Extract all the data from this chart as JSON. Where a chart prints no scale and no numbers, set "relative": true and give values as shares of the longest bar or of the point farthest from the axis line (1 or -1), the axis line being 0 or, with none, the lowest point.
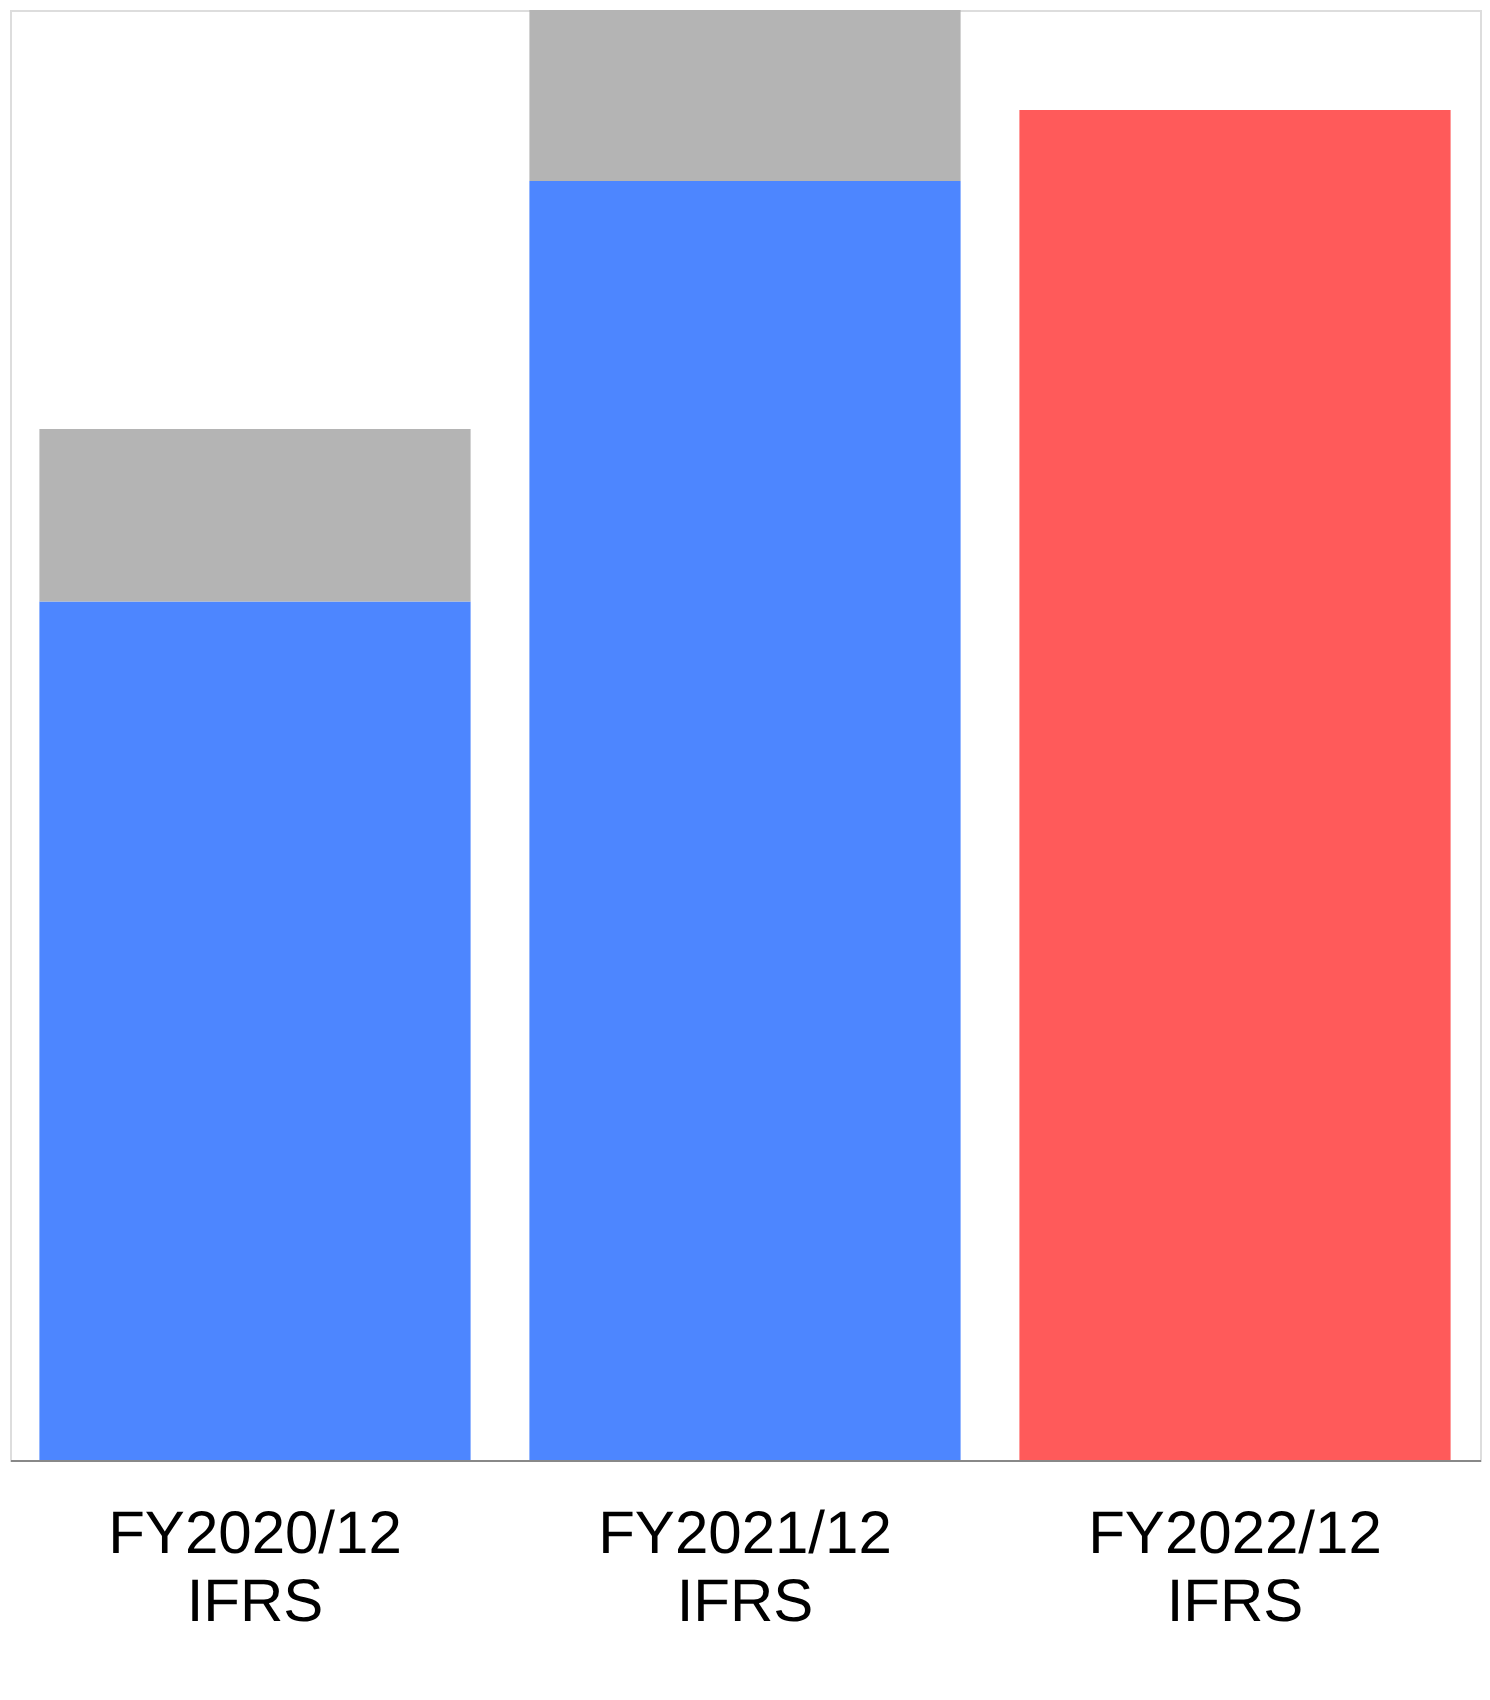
{
  "chart_data": {
    "type": "bar",
    "stacked": true,
    "relative": true,
    "categories": [
      "FY2020/12\nIFRS",
      "FY2021/12\nIFRS",
      "FY2022/12\nIFRS"
    ],
    "series": [
      {
        "color": "#4d86ff",
        "values": [
          0.592,
          0.882,
          null
        ]
      },
      {
        "color": "#b4b4b4",
        "values": [
          0.119,
          0.118,
          null
        ]
      },
      {
        "color": "#ff5a5a",
        "values": [
          null,
          null,
          0.931
        ]
      }
    ],
    "tick_labels": "x"
  }
}
